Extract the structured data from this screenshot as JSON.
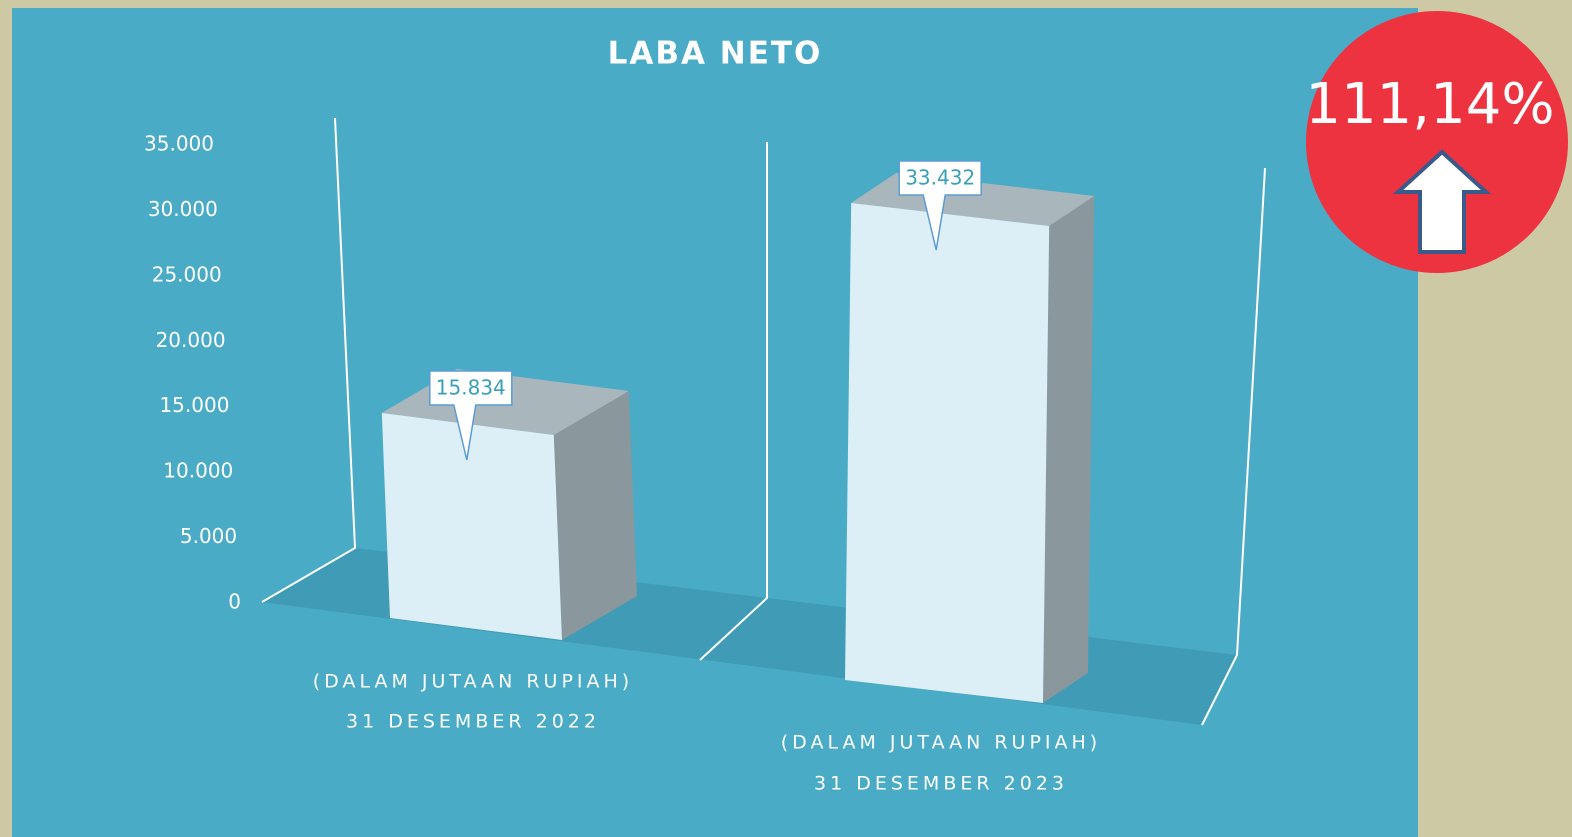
{
  "chart_data": {
    "type": "bar3d",
    "title": "LABA NETO",
    "categories": [
      [
        "(DALAM JUTAAN RUPIAH)",
        "31 DESEMBER 2022"
      ],
      [
        "(DALAM JUTAAN RUPIAH)",
        "31 DESEMBER 2023"
      ]
    ],
    "values": [
      15834,
      33432
    ],
    "value_labels": [
      "15.834",
      "33.432"
    ],
    "color": "#ddeff6",
    "ylim": [
      0,
      35000
    ],
    "yticks": [
      0,
      {
        "value": 5000,
        "label": "5.000"
      },
      {
        "value": 10000,
        "label": "10.000"
      },
      {
        "value": 15000,
        "label": "15.000"
      },
      {
        "value": 20000,
        "label": "20.000"
      },
      {
        "value": 25000,
        "label": "25.000"
      },
      {
        "value": 30000,
        "label": "30.000"
      },
      {
        "value": 35000,
        "label": "35.000"
      }
    ],
    "annotation": "111,14%"
  }
}
